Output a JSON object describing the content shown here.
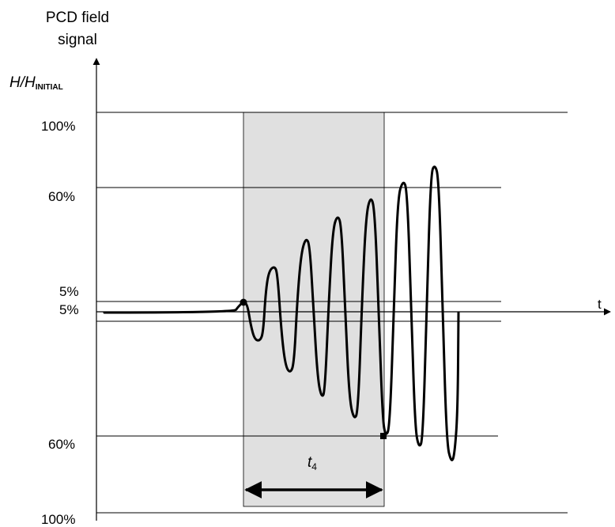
{
  "title": {
    "line1": "PCD field",
    "line2": "signal"
  },
  "y_axis": {
    "main": "H/H",
    "subscript": "INITIAL"
  },
  "x_axis": {
    "label": "t"
  },
  "levels": {
    "top_100": "100%",
    "top_60": "60%",
    "top_5": "5%",
    "bottom_5": "5%",
    "bottom_60": "60%",
    "bottom_100": "100%"
  },
  "interval": {
    "main": "t",
    "subscript": "4"
  },
  "colors": {
    "shade": "#e0e0e0",
    "line": "#000000"
  }
}
